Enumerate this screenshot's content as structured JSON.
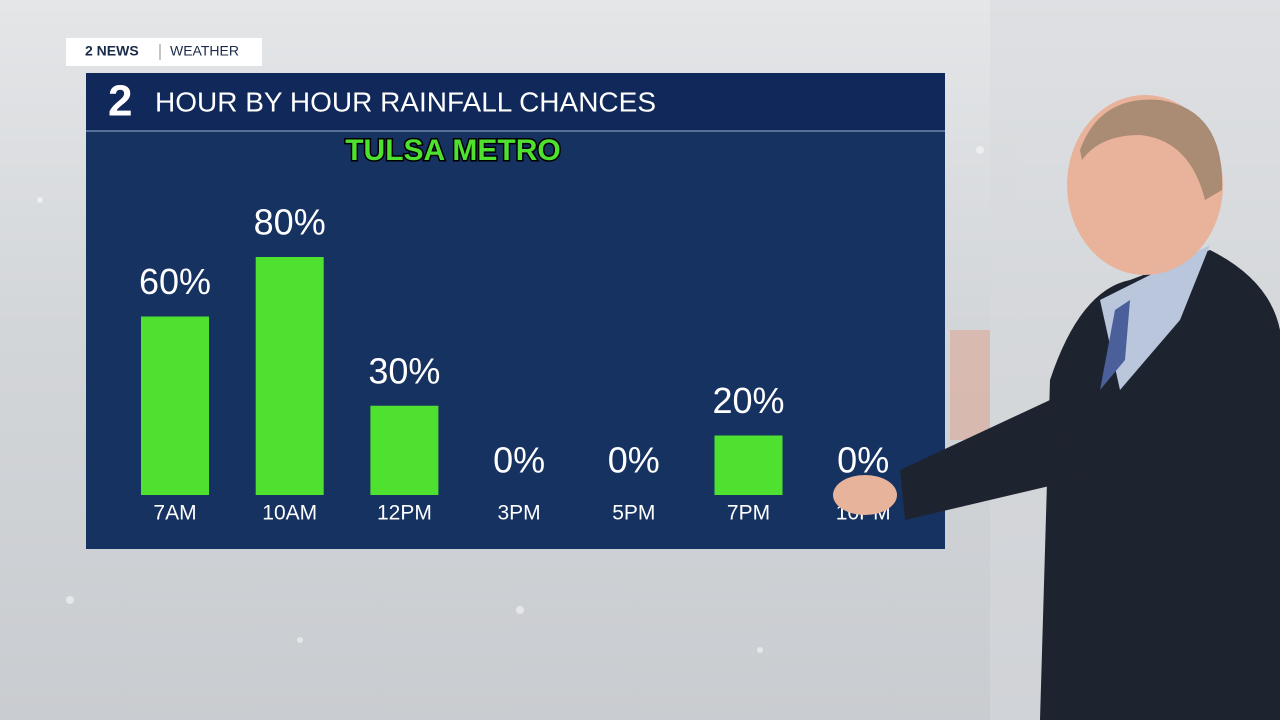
{
  "brand": {
    "station": "2 NEWS",
    "section": "WEATHER",
    "logo": "2"
  },
  "chart_data": {
    "type": "bar",
    "title": "HOUR BY HOUR RAINFALL CHANCES",
    "subtitle": "TULSA METRO",
    "categories": [
      "7AM",
      "10AM",
      "12PM",
      "3PM",
      "5PM",
      "7PM",
      "10PM"
    ],
    "values": [
      60,
      80,
      30,
      0,
      0,
      20,
      0
    ],
    "value_labels": [
      "60%",
      "80%",
      "30%",
      "0%",
      "0%",
      "20%",
      "0%"
    ],
    "color": "#4fe12f"
  }
}
